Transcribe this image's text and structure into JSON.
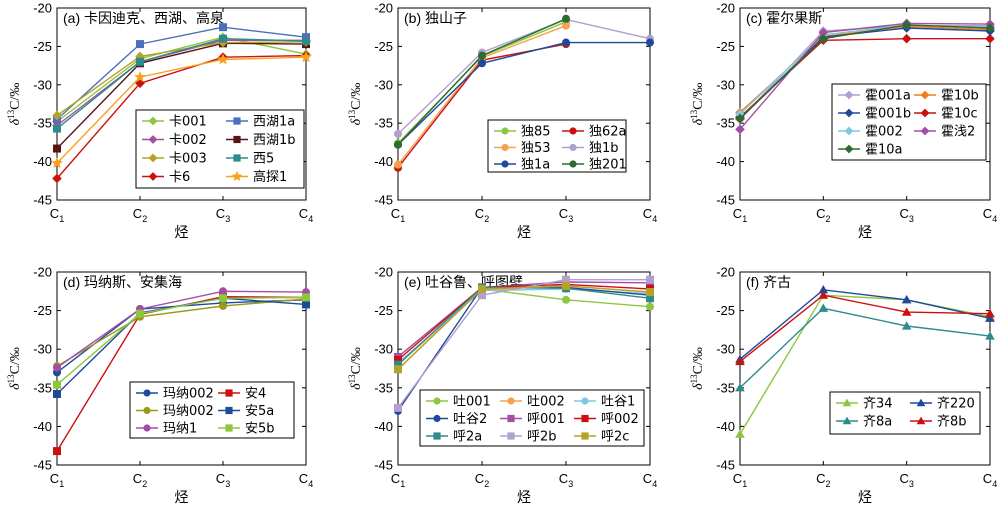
{
  "chart_data": [
    {
      "type": "line",
      "title": "(a) 卡因迪克、西湖、高泉",
      "xlabel": "烃",
      "ylabel": "δ13C/‰",
      "ylabel_parts": {
        "delta": "δ",
        "sup": "13",
        "rest": "C/‰"
      },
      "x_categories": [
        {
          "base": "C",
          "sub": "1"
        },
        {
          "base": "C",
          "sub": "2"
        },
        {
          "base": "C",
          "sub": "3"
        },
        {
          "base": "C",
          "sub": "4"
        }
      ],
      "ylim": [
        -45,
        -20
      ],
      "yticks": [
        -45,
        -40,
        -35,
        -30,
        -25,
        -20
      ],
      "legend": {
        "placement": "center-right",
        "columns": 2
      },
      "series": [
        {
          "name": "卡001",
          "color": "#8dc63f",
          "marker": "diamond",
          "values": [
            -34.8,
            -26.6,
            -23.8,
            -26.0
          ]
        },
        {
          "name": "西湖1a",
          "color": "#4a6fbf",
          "marker": "square",
          "values": [
            -34.5,
            -24.7,
            -22.5,
            -23.8
          ]
        },
        {
          "name": "卡002",
          "color": "#a34ea3",
          "marker": "diamond",
          "values": [
            -35.3,
            -27.0,
            -24.2,
            -24.2
          ]
        },
        {
          "name": "西湖1b",
          "color": "#5a1414",
          "marker": "square",
          "values": [
            -38.3,
            -27.2,
            -24.6,
            -24.7
          ]
        },
        {
          "name": "卡003",
          "color": "#b5a228",
          "marker": "diamond",
          "values": [
            -34.0,
            -26.3,
            -24.5,
            -24.4
          ]
        },
        {
          "name": "西5",
          "color": "#2e8b8b",
          "marker": "square",
          "values": [
            -35.7,
            -27.0,
            -24.0,
            -24.3
          ]
        },
        {
          "name": "卡6",
          "color": "#cc1010",
          "marker": "diamond",
          "values": [
            -42.2,
            -29.8,
            -26.4,
            -26.2
          ]
        },
        {
          "name": "高探1",
          "color": "#f7a21b",
          "marker": "star",
          "values": [
            -40.2,
            -29.0,
            -26.7,
            -26.4
          ]
        }
      ]
    },
    {
      "type": "line",
      "title": "(b) 独山子",
      "xlabel": "烃",
      "ylabel": "δ13C/‰",
      "ylabel_parts": {
        "delta": "δ",
        "sup": "13",
        "rest": "C/‰"
      },
      "x_categories": [
        {
          "base": "C",
          "sub": "1"
        },
        {
          "base": "C",
          "sub": "2"
        },
        {
          "base": "C",
          "sub": "3"
        },
        {
          "base": "C",
          "sub": "4"
        }
      ],
      "ylim": [
        -45,
        -20
      ],
      "yticks": [
        -45,
        -40,
        -35,
        -30,
        -25,
        -20
      ],
      "legend": {
        "placement": "center-right",
        "columns": 2
      },
      "series": [
        {
          "name": "独85",
          "color": "#8dc63f",
          "marker": "circle",
          "values": [
            -37.6,
            -26.3,
            -21.8,
            null
          ]
        },
        {
          "name": "独62a",
          "color": "#cc1010",
          "marker": "circle",
          "values": [
            -40.8,
            -26.8,
            -24.7,
            null
          ]
        },
        {
          "name": "独53",
          "color": "#f7a24a",
          "marker": "circle",
          "values": [
            -40.4,
            -26.5,
            -22.3,
            null
          ]
        },
        {
          "name": "独1b",
          "color": "#b09fd0",
          "marker": "circle",
          "values": [
            -36.4,
            -25.8,
            -21.5,
            -24.0
          ]
        },
        {
          "name": "独1a",
          "color": "#1f4a9a",
          "marker": "circle",
          "values": [
            -37.8,
            -27.2,
            -24.5,
            -24.5
          ]
        },
        {
          "name": "独201",
          "color": "#2e6b2e",
          "marker": "circle",
          "values": [
            -37.8,
            -26.2,
            -21.4,
            null
          ]
        }
      ]
    },
    {
      "type": "line",
      "title": "(c) 霍尔果斯",
      "xlabel": "烃",
      "ylabel": "δ13C/‰",
      "ylabel_parts": {
        "delta": "δ",
        "sup": "13",
        "rest": "C/‰"
      },
      "x_categories": [
        {
          "base": "C",
          "sub": "1"
        },
        {
          "base": "C",
          "sub": "2"
        },
        {
          "base": "C",
          "sub": "3"
        },
        {
          "base": "C",
          "sub": "4"
        }
      ],
      "ylim": [
        -45,
        -20
      ],
      "yticks": [
        -45,
        -40,
        -35,
        -30,
        -25,
        -20
      ],
      "legend": {
        "placement": "center-right",
        "columns": 2
      },
      "series": [
        {
          "name": "霍001a",
          "color": "#b09fd0",
          "marker": "diamond",
          "values": [
            -34.5,
            -23.0,
            -22.3,
            -22.3
          ]
        },
        {
          "name": "霍10b",
          "color": "#f07d1a",
          "marker": "diamond",
          "values": [
            -33.6,
            -23.7,
            -22.4,
            -22.8
          ]
        },
        {
          "name": "霍001b",
          "color": "#1f4a9a",
          "marker": "diamond",
          "values": [
            -34.4,
            -23.8,
            -22.6,
            -23.0
          ]
        },
        {
          "name": "霍10c",
          "color": "#cc1010",
          "marker": "diamond",
          "values": [
            -34.2,
            -24.2,
            -24.0,
            -24.0
          ]
        },
        {
          "name": "霍002",
          "color": "#7ec8e3",
          "marker": "diamond",
          "values": [
            -33.8,
            -23.5,
            -22.2,
            -22.5
          ]
        },
        {
          "name": "霍浅2",
          "color": "#a34ea3",
          "marker": "diamond",
          "values": [
            -35.8,
            -23.2,
            -22.0,
            -22.1
          ]
        },
        {
          "name": "霍10a",
          "color": "#2e6b2e",
          "marker": "diamond",
          "values": [
            -34.4,
            -24.0,
            -22.2,
            -22.6
          ]
        }
      ]
    },
    {
      "type": "line",
      "title": "(d) 玛纳斯、安集海",
      "xlabel": "烃",
      "ylabel": "δ13C/‰",
      "ylabel_parts": {
        "delta": "δ",
        "sup": "13",
        "rest": "C/‰"
      },
      "x_categories": [
        {
          "base": "C",
          "sub": "1"
        },
        {
          "base": "C",
          "sub": "2"
        },
        {
          "base": "C",
          "sub": "3"
        },
        {
          "base": "C",
          "sub": "4"
        }
      ],
      "ylim": [
        -45,
        -20
      ],
      "yticks": [
        -45,
        -40,
        -35,
        -30,
        -25,
        -20
      ],
      "legend": {
        "placement": "bottom-right",
        "columns": 2
      },
      "series": [
        {
          "name": "玛纳002",
          "color": "#1f4a9a",
          "marker": "circle",
          "values": [
            -33.0,
            -24.8,
            -24.0,
            -23.6
          ]
        },
        {
          "name": "安4",
          "color": "#cc1010",
          "marker": "square",
          "values": [
            -43.2,
            -25.5,
            -23.2,
            -23.3
          ]
        },
        {
          "name": "玛纳002",
          "color": "#9a9a1a",
          "marker": "circle",
          "values": [
            -32.2,
            -25.8,
            -24.4,
            -23.5
          ]
        },
        {
          "name": "安5a",
          "color": "#1f4a9a",
          "marker": "square",
          "values": [
            -35.8,
            -25.3,
            -23.4,
            -24.2
          ]
        },
        {
          "name": "玛纳1",
          "color": "#a34ea3",
          "marker": "circle",
          "values": [
            -32.4,
            -24.8,
            -22.5,
            -22.6
          ]
        },
        {
          "name": "安5b",
          "color": "#8dc63f",
          "marker": "square",
          "values": [
            -34.6,
            -25.4,
            -23.4,
            -23.3
          ]
        }
      ]
    },
    {
      "type": "line",
      "title": "(e) 吐谷鲁、呼图壁",
      "xlabel": "烃",
      "ylabel": "δ13C/‰",
      "ylabel_parts": {
        "delta": "δ",
        "sup": "13",
        "rest": "C/‰"
      },
      "x_categories": [
        {
          "base": "C",
          "sub": "1"
        },
        {
          "base": "C",
          "sub": "2"
        },
        {
          "base": "C",
          "sub": "3"
        },
        {
          "base": "C",
          "sub": "4"
        }
      ],
      "ylim": [
        -45,
        -20
      ],
      "yticks": [
        -45,
        -40,
        -35,
        -30,
        -25,
        -20
      ],
      "legend": {
        "placement": "bottom-right",
        "columns": 3
      },
      "series": [
        {
          "name": "吐001",
          "color": "#8dc63f",
          "marker": "circle",
          "values": [
            -32.6,
            -22.2,
            -23.6,
            -24.5
          ]
        },
        {
          "name": "吐002",
          "color": "#f7a24a",
          "marker": "circle",
          "values": [
            -32.0,
            -22.3,
            -21.8,
            -22.6
          ]
        },
        {
          "name": "吐谷1",
          "color": "#7ec8e3",
          "marker": "circle",
          "values": [
            -31.8,
            -22.4,
            -22.2,
            -22.8
          ]
        },
        {
          "name": "吐谷2",
          "color": "#1f4a9a",
          "marker": "circle",
          "values": [
            -38.0,
            -22.0,
            -22.0,
            -23.0
          ]
        },
        {
          "name": "呼001",
          "color": "#a34ea3",
          "marker": "square",
          "values": [
            -31.0,
            -22.0,
            -21.3,
            -21.4
          ]
        },
        {
          "name": "呼002",
          "color": "#cc1010",
          "marker": "square",
          "values": [
            -31.4,
            -22.0,
            -21.6,
            -22.2
          ]
        },
        {
          "name": "呼2a",
          "color": "#2e8b8b",
          "marker": "square",
          "values": [
            -32.0,
            -22.0,
            -22.1,
            -23.4
          ]
        },
        {
          "name": "呼2b",
          "color": "#b09fd0",
          "marker": "square",
          "values": [
            -37.6,
            -23.0,
            -21.0,
            -21.0
          ]
        },
        {
          "name": "呼2c",
          "color": "#b5a228",
          "marker": "square",
          "values": [
            -32.6,
            -22.2,
            -21.8,
            -22.6
          ]
        }
      ]
    },
    {
      "type": "line",
      "title": "(f) 齐古",
      "xlabel": "烃",
      "ylabel": "δ13C/‰",
      "ylabel_parts": {
        "delta": "δ",
        "sup": "13",
        "rest": "C/‰"
      },
      "x_categories": [
        {
          "base": "C",
          "sub": "1"
        },
        {
          "base": "C",
          "sub": "2"
        },
        {
          "base": "C",
          "sub": "3"
        },
        {
          "base": "C",
          "sub": "4"
        }
      ],
      "ylim": [
        -45,
        -20
      ],
      "yticks": [
        -45,
        -40,
        -35,
        -30,
        -25,
        -20
      ],
      "legend": {
        "placement": "bottom-right",
        "columns": 2
      },
      "series": [
        {
          "name": "齐34",
          "color": "#8dc63f",
          "marker": "triangle",
          "values": [
            -41.0,
            -23.0,
            -23.6,
            -25.8
          ]
        },
        {
          "name": "齐220",
          "color": "#1f4a9a",
          "marker": "triangle",
          "values": [
            -31.3,
            -22.3,
            -23.6,
            -26.0
          ]
        },
        {
          "name": "齐8a",
          "color": "#2e8b8b",
          "marker": "triangle",
          "values": [
            -35.0,
            -24.7,
            -27.0,
            -28.3
          ]
        },
        {
          "name": "齐8b",
          "color": "#cc1010",
          "marker": "triangle",
          "values": [
            -31.6,
            -23.0,
            -25.2,
            -25.4
          ]
        }
      ]
    }
  ]
}
